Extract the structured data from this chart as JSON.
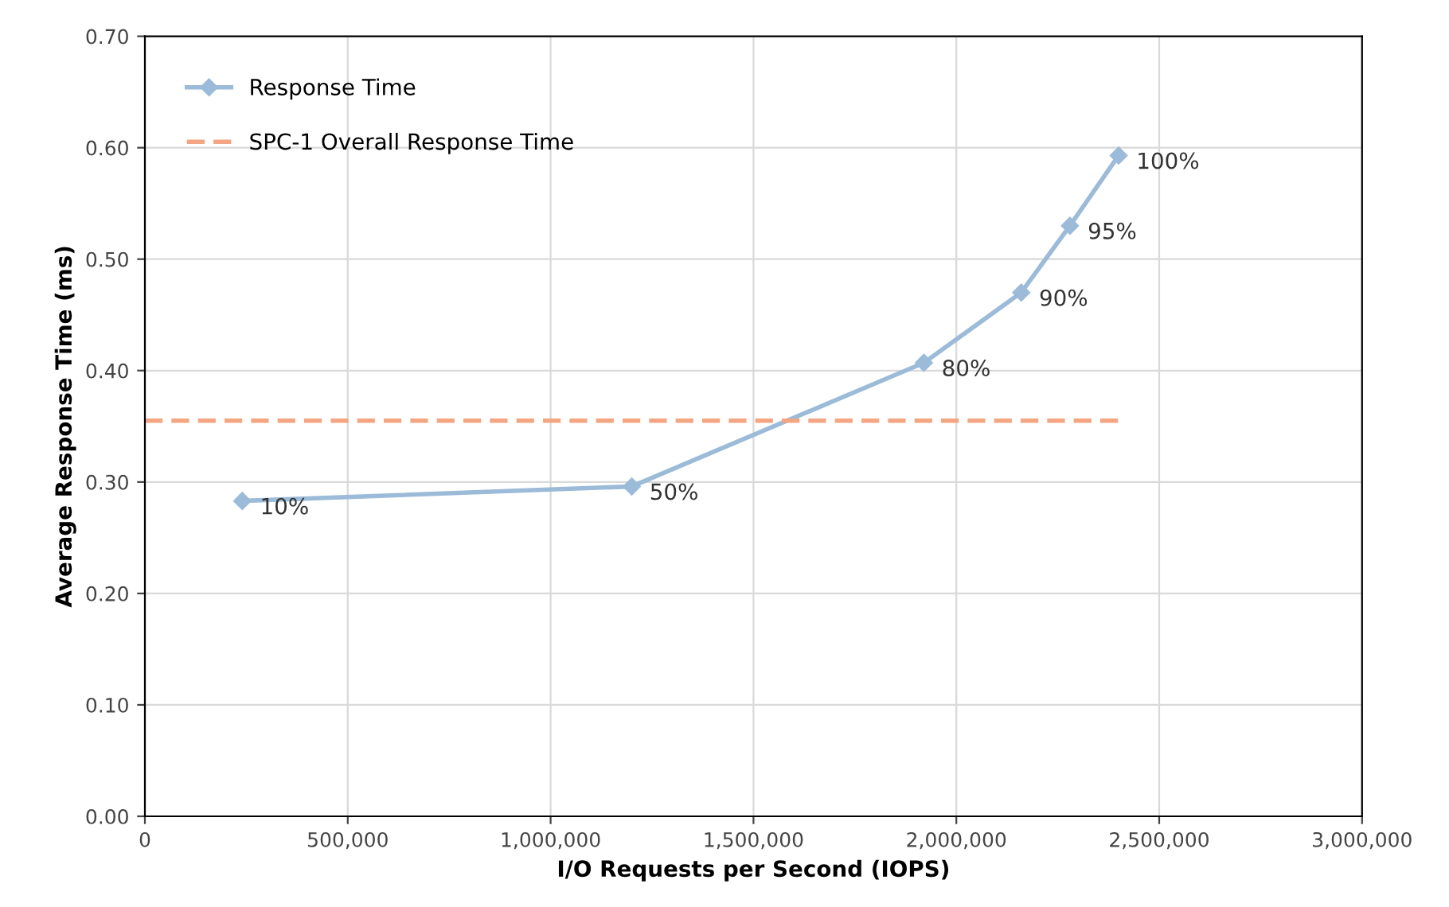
{
  "chart_data": {
    "type": "line",
    "xlabel": "I/O Requests per Second (IOPS)",
    "ylabel": "Average Response Time (ms)",
    "xlim": [
      0,
      3000000
    ],
    "ylim": [
      0,
      0.7
    ],
    "xticks": [
      0,
      {
        "value": 500000,
        "label": "500,000"
      },
      {
        "value": 1000000,
        "label": "1,000,000"
      },
      {
        "value": 1500000,
        "label": "1,500,000"
      },
      {
        "value": 2000000,
        "label": "2,000,000"
      },
      {
        "value": 2500000,
        "label": "2,500,000"
      },
      {
        "value": 3000000,
        "label": "3,000,000"
      }
    ],
    "yticks": [
      {
        "value": 0,
        "label": "0.00"
      },
      {
        "value": 0.1,
        "label": "0.10"
      },
      {
        "value": 0.2,
        "label": "0.20"
      },
      {
        "value": 0.3,
        "label": "0.30"
      },
      {
        "value": 0.4,
        "label": "0.40"
      },
      {
        "value": 0.5,
        "label": "0.50"
      },
      {
        "value": 0.6,
        "label": "0.60"
      },
      {
        "value": 0.7,
        "label": "0.70"
      }
    ],
    "grid": true,
    "annotations": [
      {
        "text": "10%",
        "x": 240000,
        "y": 0.283
      },
      {
        "text": "50%",
        "x": 1200000,
        "y": 0.296
      },
      {
        "text": "80%",
        "x": 1920000,
        "y": 0.407
      },
      {
        "text": "90%",
        "x": 2160000,
        "y": 0.47
      },
      {
        "text": "95%",
        "x": 2280000,
        "y": 0.53
      },
      {
        "text": "100%",
        "x": 2400000,
        "y": 0.593
      }
    ],
    "legend": "top left",
    "series": [
      {
        "name": "Response Time",
        "color": "#9bbbd9",
        "marker": "diamond",
        "line_style": "solid",
        "x": [
          240000,
          1200000,
          1920000,
          2160000,
          2280000,
          2400000
        ],
        "values": [
          0.283,
          0.296,
          0.407,
          0.47,
          0.53,
          0.593
        ]
      },
      {
        "name": "SPC-1 Overall Response Time",
        "color": "#f4a582",
        "marker": "none",
        "line_style": "dashed",
        "x": [
          0,
          2400000
        ],
        "values": [
          0.355,
          0.355
        ]
      }
    ]
  }
}
